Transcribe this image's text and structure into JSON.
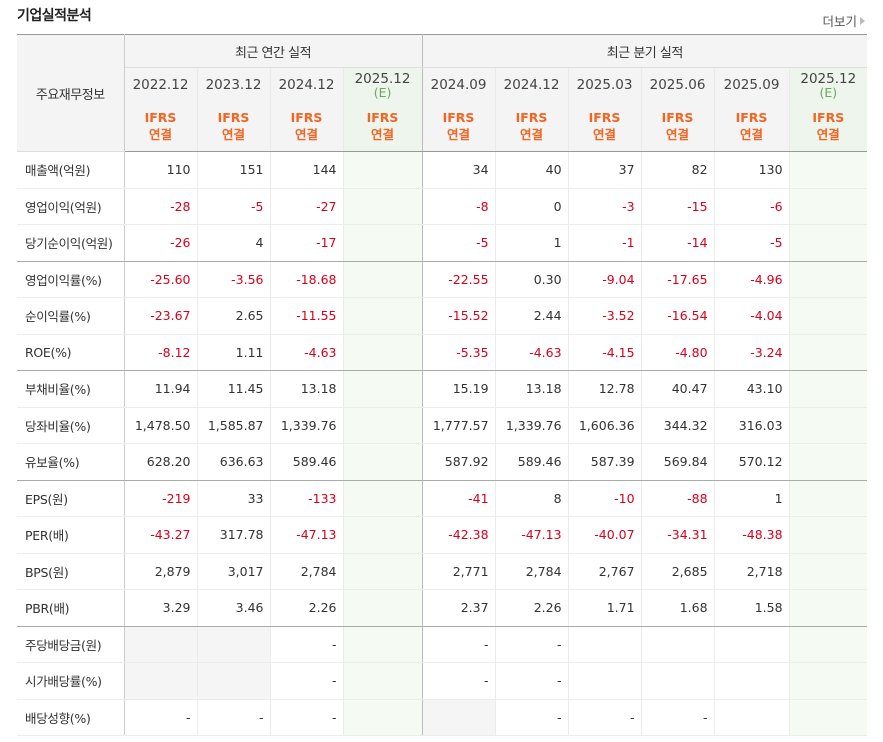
{
  "section_title": "기업실적분석",
  "more_label": "더보기",
  "header": {
    "row_label": "주요재무정보",
    "annual_label": "최근 연간 실적",
    "quarter_label": "최근 분기 실적",
    "annual_periods": [
      {
        "date": "2022.12",
        "est": "",
        "std": "IFRS",
        "basis": "연결"
      },
      {
        "date": "2023.12",
        "est": "",
        "std": "IFRS",
        "basis": "연결"
      },
      {
        "date": "2024.12",
        "est": "",
        "std": "IFRS",
        "basis": "연결"
      },
      {
        "date": "2025.12",
        "est": "(E)",
        "std": "IFRS",
        "basis": "연결"
      }
    ],
    "quarter_periods": [
      {
        "date": "2024.09",
        "est": "",
        "std": "IFRS",
        "basis": "연결"
      },
      {
        "date": "2024.12",
        "est": "",
        "std": "IFRS",
        "basis": "연결"
      },
      {
        "date": "2025.03",
        "est": "",
        "std": "IFRS",
        "basis": "연결"
      },
      {
        "date": "2025.06",
        "est": "",
        "std": "IFRS",
        "basis": "연결"
      },
      {
        "date": "2025.09",
        "est": "",
        "std": "IFRS",
        "basis": "연결"
      },
      {
        "date": "2025.12",
        "est": "(E)",
        "std": "IFRS",
        "basis": "연결"
      }
    ]
  },
  "rows": [
    {
      "label": "매출액(억원)",
      "values": [
        "110",
        "151",
        "144",
        "",
        "34",
        "40",
        "37",
        "82",
        "130",
        ""
      ]
    },
    {
      "label": "영업이익(억원)",
      "values": [
        "-28",
        "-5",
        "-27",
        "",
        "-8",
        "0",
        "-3",
        "-15",
        "-6",
        ""
      ]
    },
    {
      "label": "당기순이익(억원)",
      "values": [
        "-26",
        "4",
        "-17",
        "",
        "-5",
        "1",
        "-1",
        "-14",
        "-5",
        ""
      ]
    },
    {
      "label": "영업이익률(%)",
      "values": [
        "-25.60",
        "-3.56",
        "-18.68",
        "",
        "-22.55",
        "0.30",
        "-9.04",
        "-17.65",
        "-4.96",
        ""
      ]
    },
    {
      "label": "순이익률(%)",
      "values": [
        "-23.67",
        "2.65",
        "-11.55",
        "",
        "-15.52",
        "2.44",
        "-3.52",
        "-16.54",
        "-4.04",
        ""
      ]
    },
    {
      "label": "ROE(%)",
      "values": [
        "-8.12",
        "1.11",
        "-4.63",
        "",
        "-5.35",
        "-4.63",
        "-4.15",
        "-4.80",
        "-3.24",
        ""
      ]
    },
    {
      "label": "부채비율(%)",
      "values": [
        "11.94",
        "11.45",
        "13.18",
        "",
        "15.19",
        "13.18",
        "12.78",
        "40.47",
        "43.10",
        ""
      ]
    },
    {
      "label": "당좌비율(%)",
      "values": [
        "1,478.50",
        "1,585.87",
        "1,339.76",
        "",
        "1,777.57",
        "1,339.76",
        "1,606.36",
        "344.32",
        "316.03",
        ""
      ]
    },
    {
      "label": "유보율(%)",
      "values": [
        "628.20",
        "636.63",
        "589.46",
        "",
        "587.92",
        "589.46",
        "587.39",
        "569.84",
        "570.12",
        ""
      ]
    },
    {
      "label": "EPS(원)",
      "values": [
        "-219",
        "33",
        "-133",
        "",
        "-41",
        "8",
        "-10",
        "-88",
        "1",
        ""
      ]
    },
    {
      "label": "PER(배)",
      "values": [
        "-43.27",
        "317.78",
        "-47.13",
        "",
        "-42.38",
        "-47.13",
        "-40.07",
        "-34.31",
        "-48.38",
        ""
      ]
    },
    {
      "label": "BPS(원)",
      "values": [
        "2,879",
        "3,017",
        "2,784",
        "",
        "2,771",
        "2,784",
        "2,767",
        "2,685",
        "2,718",
        ""
      ]
    },
    {
      "label": "PBR(배)",
      "values": [
        "3.29",
        "3.46",
        "2.26",
        "",
        "2.37",
        "2.26",
        "1.71",
        "1.68",
        "1.58",
        ""
      ]
    },
    {
      "label": "주당배당금(원)",
      "values": [
        "",
        "",
        "-",
        "",
        "-",
        "-",
        "",
        "",
        "",
        ""
      ]
    },
    {
      "label": "시가배당률(%)",
      "values": [
        "",
        "",
        "-",
        "",
        "-",
        "-",
        "",
        "",
        "",
        ""
      ]
    },
    {
      "label": "배당성향(%)",
      "values": [
        "-",
        "-",
        "-",
        "",
        "",
        "-",
        "-",
        "-",
        "",
        ""
      ]
    }
  ],
  "colors": {
    "ifrs": "#f26522",
    "negative": "#d9001b",
    "estimate_bg": "#f5faf3"
  }
}
